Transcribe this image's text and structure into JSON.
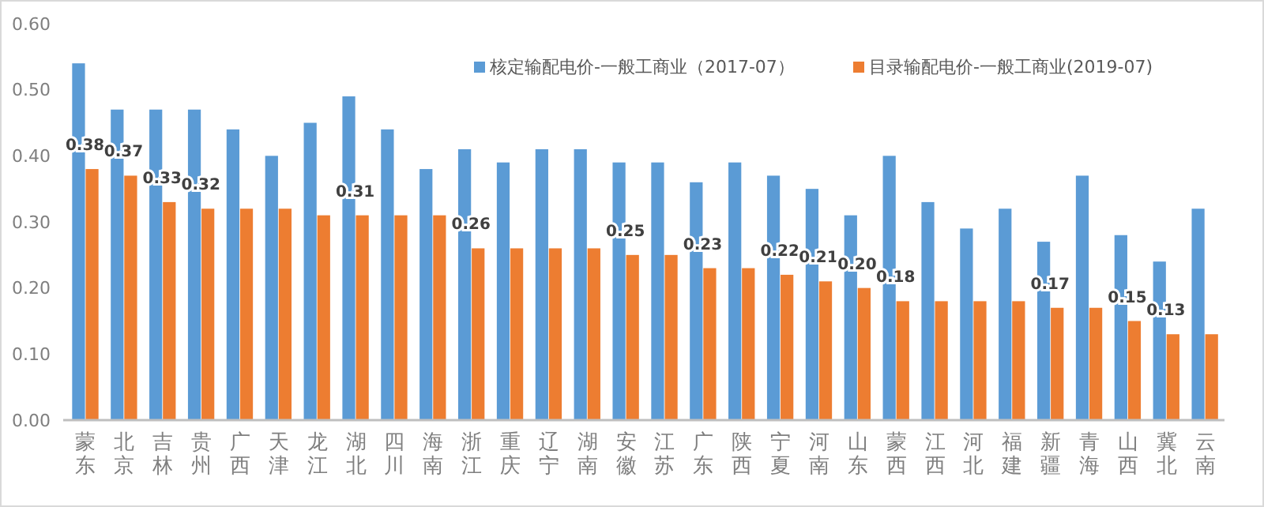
{
  "chart_data": {
    "type": "bar",
    "categories": [
      "蒙东",
      "北京",
      "吉林",
      "贵州",
      "广西",
      "天津",
      "龙江",
      "湖北",
      "四川",
      "海南",
      "浙江",
      "重庆",
      "辽宁",
      "湖南",
      "安徽",
      "江苏",
      "广东",
      "陕西",
      "宁夏",
      "河南",
      "山东",
      "蒙西",
      "江西",
      "河北",
      "福建",
      "新疆",
      "青海",
      "山西",
      "冀北",
      "云南"
    ],
    "series": [
      {
        "name": "核定输配电价-一般工商业（2017-07）",
        "color": "#5b9bd5",
        "values": [
          0.54,
          0.47,
          0.47,
          0.47,
          0.44,
          0.4,
          0.45,
          0.49,
          0.44,
          0.38,
          0.41,
          0.39,
          0.41,
          0.41,
          0.39,
          0.39,
          0.36,
          0.39,
          0.37,
          0.35,
          0.31,
          0.4,
          0.33,
          0.29,
          0.32,
          0.27,
          0.37,
          0.28,
          0.24,
          0.32
        ]
      },
      {
        "name": "目录输配电价-一般工商业(2019-07)",
        "color": "#ed7d31",
        "values": [
          0.38,
          0.37,
          0.33,
          0.32,
          0.32,
          0.32,
          0.31,
          0.31,
          0.31,
          0.31,
          0.26,
          0.26,
          0.26,
          0.26,
          0.25,
          0.25,
          0.23,
          0.23,
          0.22,
          0.21,
          0.2,
          0.18,
          0.18,
          0.18,
          0.18,
          0.17,
          0.17,
          0.15,
          0.13,
          0.13
        ],
        "value_labels": [
          "0.38",
          "0.37",
          "0.33",
          "0.32",
          null,
          null,
          null,
          "0.31",
          null,
          null,
          "0.26",
          null,
          null,
          null,
          "0.25",
          null,
          "0.23",
          null,
          "0.22",
          "0.21",
          "0.20",
          "0.18",
          null,
          null,
          null,
          "0.17",
          null,
          "0.15",
          "0.13",
          null
        ]
      }
    ],
    "ylim": [
      0,
      0.6
    ],
    "yticks": [
      {
        "value": 0,
        "label": "0.00"
      },
      {
        "value": 0.1,
        "label": "0.10"
      },
      {
        "value": 0.2,
        "label": "0.20"
      },
      {
        "value": 0.3,
        "label": "0.30"
      },
      {
        "value": 0.4,
        "label": "0.40"
      },
      {
        "value": 0.5,
        "label": "0.50"
      },
      {
        "value": 0.6,
        "label": "0.60"
      }
    ],
    "legend": "top",
    "grid": false
  }
}
